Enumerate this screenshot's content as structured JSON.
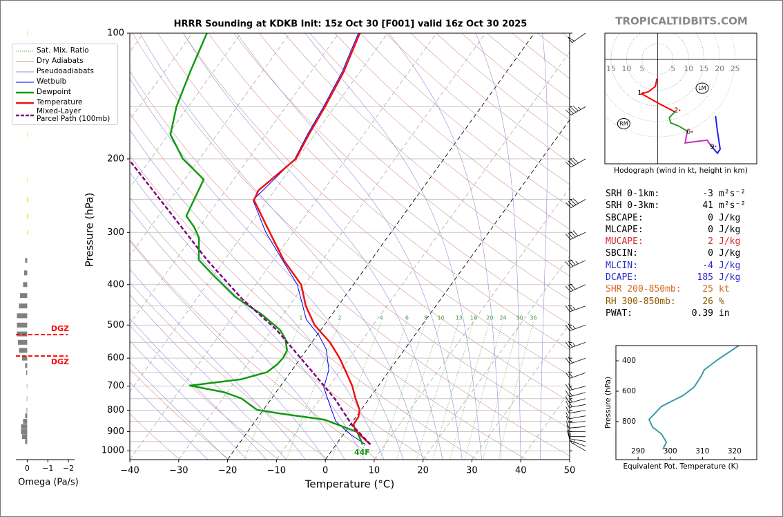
{
  "site_title": "TROPICALTIDBITS.COM",
  "chart_data": [
    {
      "type": "skew-t",
      "title": "HRRR Sounding at KDKB Init: 15z Oct 30 [F001] valid 16z Oct 30 2025",
      "x_label": "Temperature (°C)",
      "y_label": "Pressure (hPa)",
      "xlim": [
        -40,
        50
      ],
      "xticks": [
        {
          "value": -40,
          "label": "−40"
        },
        {
          "value": -30,
          "label": "−30"
        },
        {
          "value": -20,
          "label": "−20"
        },
        {
          "value": -10,
          "label": "−10"
        },
        0,
        10,
        20,
        30,
        40,
        50
      ],
      "ylim": [
        1050,
        100
      ],
      "log_y": true,
      "yticks": [
        100,
        200,
        300,
        400,
        500,
        600,
        700,
        800,
        900,
        1000
      ],
      "minor_yticks": [
        150,
        250,
        350,
        450,
        550,
        650,
        750,
        850,
        950
      ],
      "grid": true,
      "highlight_isotherms": [
        0,
        -20
      ],
      "reference_lines": [
        {
          "name": "Sat. Mix. Ratio",
          "color": "#4a9a4a",
          "style": "dotted"
        },
        {
          "name": "Dry Adiabats",
          "color": "#d89090",
          "style": "solid"
        },
        {
          "name": "Pseudoadiabats",
          "color": "#9090dd",
          "style": "solid"
        }
      ],
      "mixing_ratios": [
        1,
        2,
        4,
        6,
        8,
        10,
        13,
        16,
        20,
        24,
        30,
        36
      ],
      "series": [
        {
          "name": "Wetbulb",
          "color": "#0000ee",
          "style": "thin",
          "pressure": [
            966,
            912,
            850,
            797,
            706,
            640,
            572,
            529,
            485,
            400,
            300,
            251,
            200,
            175,
            150,
            124,
            100
          ],
          "temperature": [
            6,
            1.3,
            -3.5,
            -6.1,
            -10.9,
            -12.5,
            -16,
            -19.6,
            -24.5,
            -31.5,
            -45.6,
            -53,
            -50.5,
            -51.5,
            -52.3,
            -53.6,
            -56
          ]
        },
        {
          "name": "Dewpoint",
          "color": "#109a10",
          "style": "thick",
          "pressure": [
            966,
            902,
            842,
            814,
            798,
            749,
            724,
            698,
            674,
            648,
            622,
            600,
            575,
            540,
            514,
            472,
            428,
            379,
            349,
            309,
            291,
            274,
            224,
            200,
            175,
            150,
            124,
            100
          ],
          "temperature": [
            5.4,
            2.5,
            -6.1,
            -16.1,
            -21.3,
            -26.2,
            -30.6,
            -38.6,
            -29,
            -24.8,
            -23.9,
            -23.6,
            -23.9,
            -25.9,
            -28.3,
            -34.3,
            -42.4,
            -50.2,
            -55.3,
            -58.5,
            -61.1,
            -64.3,
            -66.1,
            -73.4,
            -79.5,
            -82.4,
            -84.7,
            -87
          ]
        },
        {
          "name": "Temperature",
          "color": "#ee1111",
          "style": "thick",
          "pressure": [
            966,
            925,
            891,
            865,
            830,
            798,
            750,
            700,
            650,
            600,
            550,
            500,
            450,
            400,
            350,
            300,
            251,
            238,
            200,
            175,
            150,
            124,
            100
          ],
          "temperature": [
            7,
            4.1,
            1.7,
            0.6,
            0.5,
            -0.3,
            -2.8,
            -5.3,
            -8.5,
            -12,
            -16.3,
            -22,
            -26.6,
            -30.7,
            -37.8,
            -44.8,
            -52.8,
            -53.3,
            -50.3,
            -51.2,
            -52,
            -53.3,
            -55.7
          ]
        },
        {
          "name": "Mixed-Layer\nParcel Path (100mb)",
          "color": "#800080",
          "style": "dashed",
          "pressure": [
            966,
            868,
            752,
            640,
            513,
            432,
            349,
            202
          ],
          "temperature": [
            7,
            0.4,
            -6.9,
            -16.2,
            -29.1,
            -40.8,
            -53.6,
            -84
          ]
        }
      ],
      "surface_label": "44F",
      "surface_label_color": "#109a10",
      "barbs": {
        "pressure": [
          1000,
          975,
          950,
          925,
          900,
          875,
          850,
          825,
          800,
          775,
          750,
          725,
          700,
          650,
          600,
          550,
          500,
          450,
          400,
          350,
          300,
          250,
          200,
          150,
          100
        ],
        "speed": [
          5,
          10,
          10,
          10,
          10,
          10,
          10,
          10,
          10,
          15,
          15,
          15,
          20,
          20,
          20,
          25,
          25,
          25,
          30,
          35,
          40,
          40,
          40,
          45,
          50
        ],
        "direction": [
          300,
          290,
          280,
          270,
          270,
          265,
          265,
          260,
          260,
          260,
          255,
          255,
          255,
          250,
          250,
          250,
          250,
          250,
          245,
          245,
          245,
          240,
          240,
          240,
          235
        ]
      }
    },
    {
      "type": "hodograph",
      "caption": "Hodograph (wind in kt, height in km)",
      "xlim": [
        -17,
        32
      ],
      "ylim": [
        -33.6,
        8.4
      ],
      "xticks": [
        {
          "value": -15,
          "label": "15"
        },
        {
          "value": -10,
          "label": "10"
        },
        {
          "value": -5,
          "label": "5"
        },
        5,
        10,
        15,
        20,
        25
      ],
      "series": [
        {
          "color": "#ff0000",
          "u": [
            -0.2,
            -0.7,
            -2.9,
            -5.1,
            0.4,
            5.6
          ],
          "v": [
            -6.2,
            -8.7,
            -10.4,
            -11.1,
            -14.2,
            -16.9
          ]
        },
        {
          "color": "#2a9a2a",
          "u": [
            5.6,
            3.8,
            4.2,
            7.1,
            9.6
          ],
          "v": [
            -16.9,
            -18.7,
            -20.4,
            -21.6,
            -23.1
          ]
        },
        {
          "color": "#c030c0",
          "u": [
            9.6,
            8.9,
            12.7,
            16,
            17.1
          ],
          "v": [
            -23.1,
            -26.9,
            -26.4,
            -26,
            -27.6
          ]
        },
        {
          "color": "#2020ee",
          "u": [
            17.1,
            19.3,
            20.2,
            19.3,
            18.7
          ],
          "v": [
            -27.6,
            -30.2,
            -28.9,
            -23.1,
            -18.2
          ]
        }
      ],
      "height_labels": [
        {
          "label": "1",
          "u": -5.8,
          "v": -10.7
        },
        {
          "label": "2",
          "u": 6,
          "v": -16.4
        },
        {
          "label": "6",
          "u": 10,
          "v": -23.3
        },
        {
          "label": "9",
          "u": 17.6,
          "v": -28
        }
      ],
      "storm_motions": [
        {
          "label": "RM",
          "u": -10.9,
          "v": -20.7
        },
        {
          "label": "LM",
          "u": 14.4,
          "v": -9.3
        }
      ]
    },
    {
      "type": "profile",
      "x_label": "Equivalent Pot. Temperature (K)",
      "y_label": "Pressure (hPa)",
      "xlim": [
        283.1,
        326.9
      ],
      "xticks": [
        290,
        300,
        310,
        320
      ],
      "ylim": [
        1050,
        300
      ],
      "yticks": [
        400,
        600,
        800
      ],
      "color": "#3a9aaa",
      "theta_e": [
        321.3,
        314.9,
        310.6,
        309.5,
        307.4,
        304.1,
        297.3,
        293.4,
        294.5,
        297.3,
        298.8,
        297.7
      ],
      "pressure": [
        300,
        391,
        459,
        505,
        573,
        627,
        700,
        786,
        836,
        882,
        936,
        982
      ]
    },
    {
      "type": "omega",
      "x_label": "Omega (Pa/s)",
      "xlim": [
        0.55,
        -2.3
      ],
      "xticks": [
        0,
        {
          "value": -1,
          "label": "−1"
        },
        {
          "value": -2,
          "label": "−2"
        }
      ],
      "ylim": [
        1050,
        100
      ],
      "log_y": true,
      "pressure": [
        100,
        125,
        150,
        175,
        225,
        250,
        275,
        300,
        350,
        375,
        400,
        425,
        450,
        475,
        500,
        525,
        550,
        575,
        600,
        625,
        650,
        700,
        750,
        800,
        825,
        850,
        875,
        900,
        925,
        950
      ],
      "values": [
        -0.02,
        -0.02,
        -0.02,
        -0.02,
        -0.02,
        -0.05,
        -0.05,
        -0.03,
        0.1,
        0.15,
        0.2,
        0.35,
        0.4,
        0.5,
        0.5,
        0.5,
        0.45,
        0.4,
        0.25,
        0.1,
        0.05,
        0.02,
        0.02,
        0.03,
        0.1,
        0.2,
        0.3,
        0.3,
        0.25,
        0.1
      ],
      "positive_color": "#808080",
      "negative_color": "#ffd700",
      "dgz": [
        {
          "pressure": 527,
          "label": "DGZ"
        },
        {
          "pressure": 593,
          "label": "DGZ"
        }
      ],
      "dgz_color": "#ff0000"
    }
  ],
  "indices": [
    {
      "label": "SRH 0-1km:",
      "value": -3,
      "unit": "m²s⁻²",
      "color": "#000000"
    },
    {
      "label": "SRH 0-3km:",
      "value": 41,
      "unit": "m²s⁻²",
      "color": "#000000"
    },
    {
      "label": "SBCAPE:",
      "value": 0,
      "unit": "J/kg",
      "color": "#000000"
    },
    {
      "label": "MLCAPE:",
      "value": 0,
      "unit": "J/kg",
      "color": "#000000"
    },
    {
      "label": "MUCAPE:",
      "value": 2,
      "unit": "J/kg",
      "color": "#d62728"
    },
    {
      "label": "SBCIN:",
      "value": 0,
      "unit": "J/kg",
      "color": "#000000"
    },
    {
      "label": "MLCIN:",
      "value": -4,
      "unit": "J/kg",
      "color": "#2a2ad0"
    },
    {
      "label": "DCAPE:",
      "value": 185,
      "unit": "J/kg",
      "color": "#2a2ad0"
    },
    {
      "label": "SHR 200-850mb:",
      "value": 25,
      "unit": "kt",
      "color": "#d2691e"
    },
    {
      "label": "RH 300-850mb:",
      "value": 26,
      "unit": "%",
      "color": "#8b5a00"
    },
    {
      "label": "PWAT:",
      "value": 0.39,
      "unit": "in",
      "color": "#000000"
    }
  ]
}
